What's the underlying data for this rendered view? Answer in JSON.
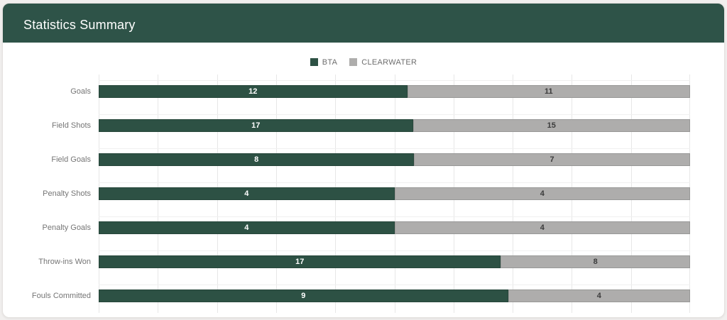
{
  "header": {
    "title": "Statistics Summary"
  },
  "colors": {
    "page_bg": "#f1efee",
    "card_bg": "#ffffff",
    "header_bg": "#2e5348",
    "gridline": "#e7e7e7",
    "row_line": "#f0f0f0",
    "axis_label": "#757575",
    "legend_text": "#6e6e6e"
  },
  "chart_data": {
    "type": "bar",
    "variant": "stacked-100",
    "orientation": "horizontal",
    "title": "Statistics Summary",
    "legend_position": "top",
    "grid": true,
    "categories": [
      "Goals",
      "Field Shots",
      "Field Goals",
      "Penalty Shots",
      "Penalty Goals",
      "Throw-ins Won",
      "Fouls Committed"
    ],
    "series": [
      {
        "name": "BTA",
        "color": "#2d5144",
        "label_color": "#ffffff",
        "values": [
          12,
          17,
          8,
          4,
          4,
          17,
          9
        ]
      },
      {
        "name": "CLEARWATER",
        "color": "#aeadac",
        "label_color": "#3b3b3b",
        "values": [
          11,
          15,
          7,
          4,
          4,
          8,
          4
        ]
      }
    ]
  }
}
